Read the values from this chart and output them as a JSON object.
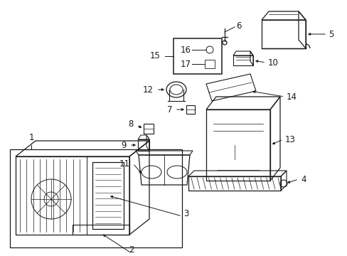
{
  "bg_color": "#ffffff",
  "line_color": "#1a1a1a",
  "gray_color": "#888888",
  "fig_w": 4.89,
  "fig_h": 3.6,
  "dpi": 100
}
